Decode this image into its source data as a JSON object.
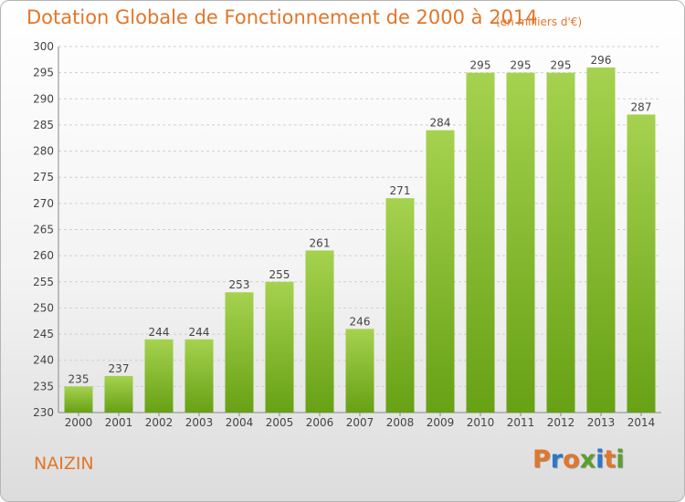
{
  "header": {
    "title": "Dotation Globale de Fonctionnement de 2000 à 2014",
    "unit": "(en milliers d'€)"
  },
  "footer": {
    "commune": "NAIZIN",
    "logo_text": "Proxiti"
  },
  "colors": {
    "title": "#e2762a",
    "bar_light": "#a5d24f",
    "bar_dark": "#67a114",
    "grid": "#cfcfcf",
    "logo_letters": [
      "#e2762a",
      "#2a78c8",
      "#e2762a",
      "#5aa02c",
      "#2a78c8",
      "#e2762a",
      "#5aa02c"
    ]
  },
  "chart_data": {
    "type": "bar",
    "categories": [
      "2000",
      "2001",
      "2002",
      "2003",
      "2004",
      "2005",
      "2006",
      "2007",
      "2008",
      "2009",
      "2010",
      "2011",
      "2012",
      "2013",
      "2014"
    ],
    "values": [
      235,
      237,
      244,
      244,
      253,
      255,
      261,
      246,
      271,
      284,
      295,
      295,
      295,
      296,
      287
    ],
    "ylim": [
      230,
      300
    ],
    "yticks": [
      230,
      235,
      240,
      245,
      250,
      255,
      260,
      265,
      270,
      275,
      280,
      285,
      290,
      295,
      300
    ],
    "grid": true,
    "data_labels": true,
    "title": "Dotation Globale de Fonctionnement de 2000 à 2014",
    "ylabel": "",
    "xlabel": ""
  }
}
